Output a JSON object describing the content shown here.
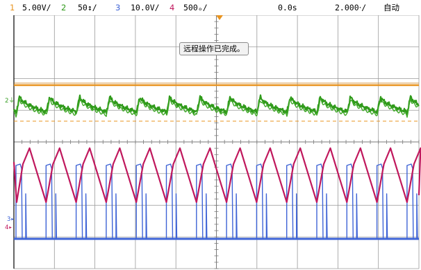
{
  "colors": {
    "ch1": "#e8931e",
    "ch2": "#2f9a1a",
    "ch3": "#3e63d6",
    "ch4": "#c0185d",
    "grid": "#9a9a9a",
    "text": "#000000"
  },
  "topbar": {
    "ch1": {
      "num": "1",
      "scale": "5.00V/"
    },
    "ch2": {
      "num": "2",
      "scale": "50↕/"
    },
    "ch3": {
      "num": "3",
      "scale": "10.0V/"
    },
    "ch4": {
      "num": "4",
      "scale": "500 /"
    },
    "ch4_scale": "500ₒ/",
    "time_offset": "0.0s",
    "time_scale": "2.000‧/",
    "mode": "自动"
  },
  "toast": {
    "message": "远程操作已完成。"
  },
  "markers": {
    "ch2": "2",
    "ch3": "3",
    "ch4": "4"
  }
}
